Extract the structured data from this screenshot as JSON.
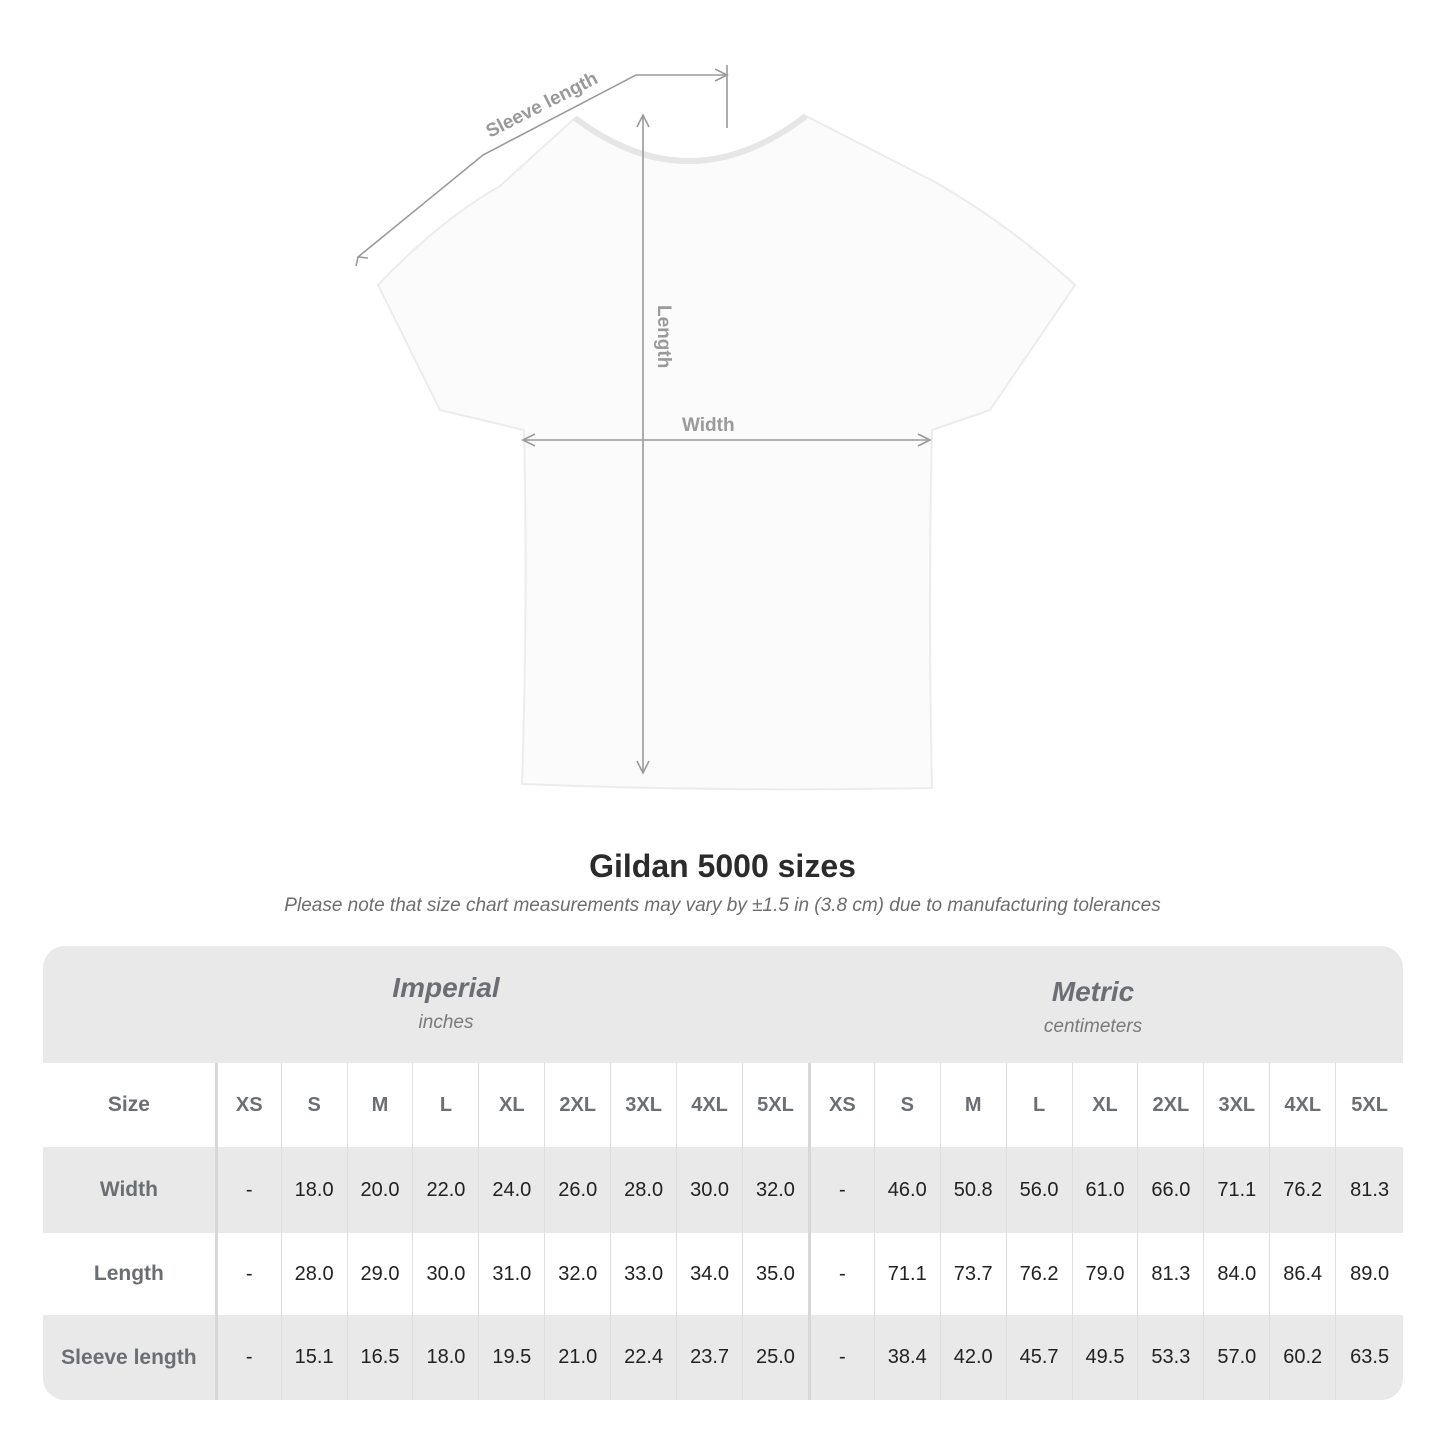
{
  "diagram": {
    "labels": {
      "sleeve": "Sleeve length",
      "length": "Length",
      "width": "Width"
    },
    "line_color": "#9a9a9a"
  },
  "title": "Gildan 5000 sizes",
  "subtitle": "Please note that size chart measurements may vary by ±1.5 in (3.8 cm) due to manufacturing tolerances",
  "table": {
    "imperial": {
      "heading": "Imperial",
      "unit": "inches"
    },
    "metric": {
      "heading": "Metric",
      "unit": "centimeters"
    },
    "size_label": "Size",
    "sizes": [
      "XS",
      "S",
      "M",
      "L",
      "XL",
      "2XL",
      "3XL",
      "4XL",
      "5XL"
    ],
    "rows": [
      {
        "label": "Width",
        "imperial": [
          "-",
          "18.0",
          "20.0",
          "22.0",
          "24.0",
          "26.0",
          "28.0",
          "30.0",
          "32.0"
        ],
        "metric": [
          "-",
          "46.0",
          "50.8",
          "56.0",
          "61.0",
          "66.0",
          "71.1",
          "76.2",
          "81.3"
        ]
      },
      {
        "label": "Length",
        "imperial": [
          "-",
          "28.0",
          "29.0",
          "30.0",
          "31.0",
          "32.0",
          "33.0",
          "34.0",
          "35.0"
        ],
        "metric": [
          "-",
          "71.1",
          "73.7",
          "76.2",
          "79.0",
          "81.3",
          "84.0",
          "86.4",
          "89.0"
        ]
      },
      {
        "label": "Sleeve length",
        "imperial": [
          "-",
          "15.1",
          "16.5",
          "18.0",
          "19.5",
          "21.0",
          "22.4",
          "23.7",
          "25.0"
        ],
        "metric": [
          "-",
          "38.4",
          "42.0",
          "45.7",
          "49.5",
          "53.3",
          "57.0",
          "60.2",
          "63.5"
        ]
      }
    ]
  }
}
